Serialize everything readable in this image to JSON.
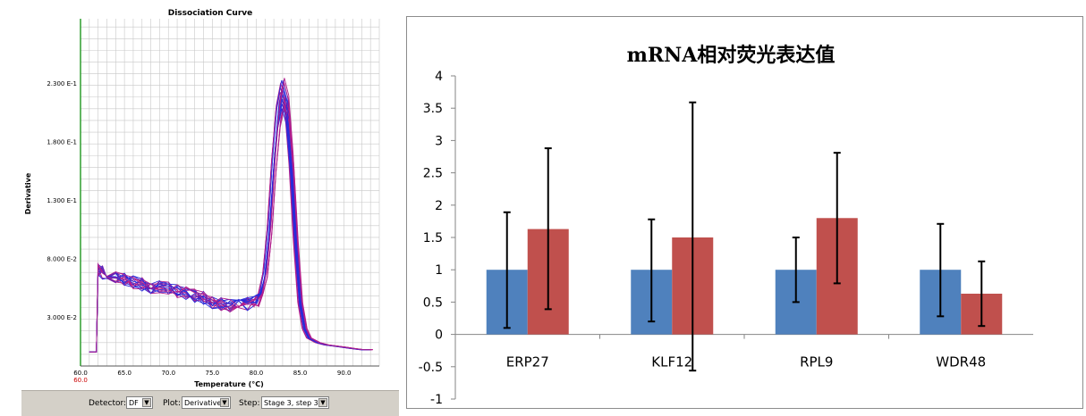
{
  "left_chart": {
    "title": "Dissociation Curve",
    "xlabel": "Temperature (°C)",
    "ylabel": "Derivative",
    "x_ticks": [
      "60.0",
      "65.0",
      "70.0",
      "75.0",
      "80.0",
      "85.0",
      "90.0"
    ],
    "x_tick_red": "60.0",
    "y_ticks": [
      "3.000 E-2",
      "8.000 E-2",
      "1.300 E-1",
      "1.800 E-1",
      "2.300 E-1"
    ],
    "toolbar": {
      "detector_label": "Detector:",
      "detector_value": "DF",
      "plot_label": "Plot:",
      "plot_value": "Derivative",
      "step_label": "Step:",
      "step_value": "Stage 3, step 3"
    },
    "colors": {
      "series_a": "#2b2bd9",
      "series_b": "#b01e8c",
      "grid": "#c8c8c8",
      "axis": "#2e9e2e"
    }
  },
  "chart_data": [
    {
      "type": "line",
      "title": "Dissociation Curve",
      "xlabel": "Temperature (°C)",
      "ylabel": "Derivative",
      "xlim": [
        60,
        94
      ],
      "ylim": [
        -0.012,
        0.285
      ],
      "x_ticks": [
        60,
        65,
        70,
        75,
        80,
        85,
        90
      ],
      "y_ticks": [
        0.03,
        0.08,
        0.13,
        0.18,
        0.23
      ],
      "grid": true,
      "series_template": {
        "x": [
          61,
          61.8,
          62,
          62.5,
          63,
          64,
          65,
          66,
          67,
          68,
          69,
          70,
          71,
          72,
          73,
          74,
          75,
          76,
          77,
          78,
          79,
          80,
          80.5,
          81,
          81.5,
          82,
          82.5,
          83,
          83.5,
          84,
          84.5,
          85,
          85.5,
          86,
          87,
          88,
          89,
          90,
          91,
          92,
          93
        ],
        "y": [
          0,
          0,
          0.07,
          0.068,
          0.066,
          0.064,
          0.062,
          0.06,
          0.058,
          0.056,
          0.055,
          0.054,
          0.052,
          0.05,
          0.048,
          0.046,
          0.043,
          0.041,
          0.04,
          0.04,
          0.041,
          0.044,
          0.05,
          0.07,
          0.11,
          0.17,
          0.215,
          0.235,
          0.22,
          0.17,
          0.1,
          0.045,
          0.02,
          0.012,
          0.008,
          0.006,
          0.005,
          0.004,
          0.003,
          0.002,
          0.002
        ]
      },
      "series_count": 16
    },
    {
      "type": "bar",
      "title": "mRNA相对荧光表达值",
      "categories": [
        "ERP27",
        "KLF12",
        "RPL9",
        "WDR48"
      ],
      "series": [
        {
          "color": "#4f81bd",
          "values": [
            1,
            1,
            1,
            1
          ],
          "error_low": [
            0.1,
            0.2,
            0.5,
            0.28
          ],
          "error_high": [
            1.89,
            1.78,
            1.5,
            1.71
          ]
        },
        {
          "color": "#c0504d",
          "values": [
            1.63,
            1.5,
            1.8,
            0.63
          ],
          "error_low": [
            0.39,
            -0.56,
            0.79,
            0.13
          ],
          "error_high": [
            2.88,
            3.59,
            2.81,
            1.13
          ]
        }
      ],
      "ylim": [
        -1,
        4
      ],
      "y_ticks": [
        "-1",
        "-0.5",
        "0",
        "0.5",
        "1",
        "1.5",
        "2",
        "2.5",
        "3",
        "3.5",
        "4"
      ],
      "grid": false
    }
  ]
}
